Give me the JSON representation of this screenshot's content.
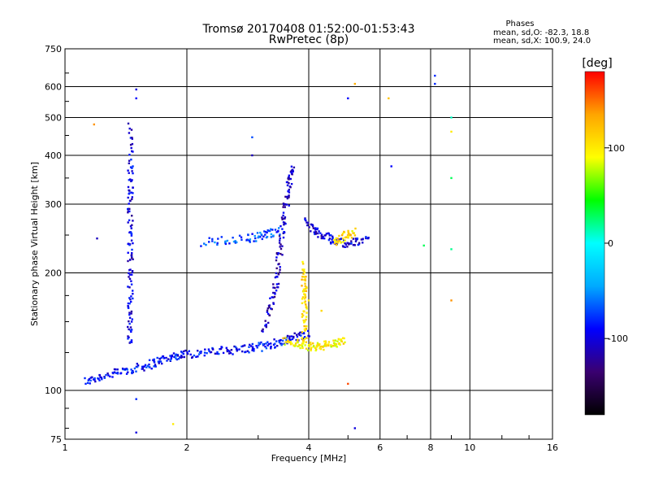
{
  "chart_data": {
    "type": "scatter",
    "title": "Tromsø 20170408 01:52:00-01:53:43",
    "subtitle": "RwPretec (8p)",
    "xlabel": "Frequency [MHz]",
    "ylabel": "Stationary phase Virtual Height [km]",
    "x_scale": "log",
    "y_scale": "log",
    "xlim": [
      1,
      16
    ],
    "ylim": [
      75,
      750
    ],
    "x_ticks": [
      1,
      2,
      4,
      6,
      8,
      10,
      16
    ],
    "y_ticks": [
      75,
      100,
      200,
      300,
      400,
      500,
      600,
      750
    ],
    "grid": true,
    "stats": {
      "heading": "Phases",
      "line_o": "mean, sd,O: -82.3, 18.8",
      "line_x": "mean, sd,X: 100.9, 24.0"
    },
    "colorbar": {
      "label": "[deg]",
      "range": [
        -180,
        180
      ],
      "ticks": [
        -100,
        0,
        100
      ],
      "colors": [
        "#000000",
        "#3a0070",
        "#0000ff",
        "#00aaff",
        "#00ffff",
        "#00ff00",
        "#ffff00",
        "#ffa500",
        "#ff0000"
      ]
    },
    "traces": [
      {
        "name": "E-layer O trace",
        "x": [
          1.12,
          1.2,
          1.3,
          1.4,
          1.5,
          1.6,
          1.7,
          1.8,
          1.9,
          2.0,
          2.2,
          2.4,
          2.6,
          2.8,
          3.0,
          3.2,
          3.4,
          3.6,
          3.8,
          4.0
        ],
        "y": [
          105,
          108,
          110,
          112,
          114,
          116,
          119,
          121,
          123,
          124,
          125,
          126,
          127,
          128,
          129,
          131,
          133,
          136,
          138,
          140
        ],
        "phase": -90
      },
      {
        "name": "E-layer X trace",
        "x": [
          3.5,
          3.7,
          3.9,
          4.1,
          4.3,
          4.5,
          4.7,
          4.9
        ],
        "y": [
          134,
          132,
          130,
          129,
          130,
          131,
          132,
          134
        ],
        "phase": 100
      },
      {
        "name": "F-layer vertical spread",
        "x": [
          3.1,
          3.2,
          3.3,
          3.35,
          3.4,
          3.45,
          3.5,
          3.55,
          3.6,
          3.65
        ],
        "y": [
          140,
          160,
          180,
          200,
          230,
          260,
          290,
          320,
          350,
          370
        ],
        "phase": -110
      },
      {
        "name": "F-layer horizontal trace",
        "x": [
          2.2,
          2.5,
          2.8,
          3.0,
          3.2,
          3.4
        ],
        "y": [
          240,
          242,
          245,
          248,
          252,
          258
        ],
        "phase": -70
      },
      {
        "name": "F-layer trace near 4.5 MHz",
        "x": [
          3.9,
          4.1,
          4.3,
          4.5,
          4.7,
          5.0,
          5.3,
          5.6
        ],
        "y": [
          270,
          260,
          250,
          245,
          240,
          238,
          240,
          245
        ],
        "phase": -100
      },
      {
        "name": "Mixed phase cluster",
        "x": [
          4.6,
          4.8,
          5.0,
          5.2
        ],
        "y": [
          240,
          245,
          250,
          255
        ],
        "phase": 110
      },
      {
        "name": "Vertical column at 1.45 MHz",
        "x": [
          1.45,
          1.45,
          1.45,
          1.45,
          1.45,
          1.45,
          1.45,
          1.45,
          1.45,
          1.45
        ],
        "y": [
          130,
          150,
          170,
          200,
          230,
          260,
          300,
          340,
          390,
          480
        ],
        "phase": -100
      },
      {
        "name": "Column near 3.9 MHz",
        "x": [
          3.9,
          3.9,
          3.9,
          3.9,
          3.9,
          3.9
        ],
        "y": [
          130,
          145,
          160,
          175,
          190,
          210
        ],
        "phase": 110
      }
    ],
    "scatter_points": [
      {
        "x": 1.18,
        "y": 480,
        "phase": 140
      },
      {
        "x": 1.2,
        "y": 245,
        "phase": -110
      },
      {
        "x": 1.5,
        "y": 590,
        "phase": -100
      },
      {
        "x": 1.5,
        "y": 560,
        "phase": -90
      },
      {
        "x": 1.85,
        "y": 82,
        "phase": 100
      },
      {
        "x": 2.9,
        "y": 445,
        "phase": -70
      },
      {
        "x": 2.9,
        "y": 400,
        "phase": -110
      },
      {
        "x": 5.2,
        "y": 610,
        "phase": 130
      },
      {
        "x": 5.0,
        "y": 560,
        "phase": -90
      },
      {
        "x": 6.3,
        "y": 560,
        "phase": 120
      },
      {
        "x": 8.2,
        "y": 640,
        "phase": -80
      },
      {
        "x": 8.2,
        "y": 610,
        "phase": -80
      },
      {
        "x": 9.0,
        "y": 500,
        "phase": 10
      },
      {
        "x": 9.0,
        "y": 460,
        "phase": 100
      },
      {
        "x": 9.0,
        "y": 350,
        "phase": 30
      },
      {
        "x": 9.0,
        "y": 230,
        "phase": 20
      },
      {
        "x": 9.0,
        "y": 170,
        "phase": 140
      },
      {
        "x": 7.7,
        "y": 235,
        "phase": 30
      },
      {
        "x": 6.4,
        "y": 375,
        "phase": -90
      },
      {
        "x": 5.2,
        "y": 80,
        "phase": -100
      },
      {
        "x": 5.0,
        "y": 104,
        "phase": 160
      },
      {
        "x": 1.5,
        "y": 78,
        "phase": -100
      },
      {
        "x": 1.5,
        "y": 95,
        "phase": -80
      },
      {
        "x": 4.0,
        "y": 170,
        "phase": 100
      },
      {
        "x": 4.3,
        "y": 160,
        "phase": 110
      }
    ]
  }
}
